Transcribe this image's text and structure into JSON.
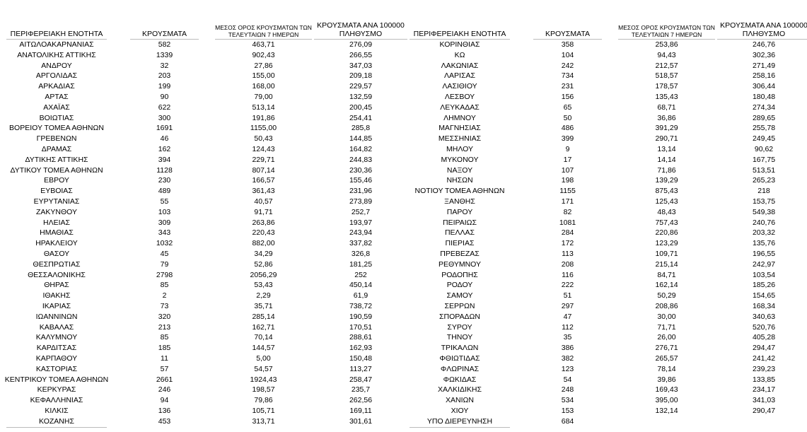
{
  "tables": [
    {
      "header": [
        "ΠΕΡΙΦΕΡΕΙΑΚΗ ΕΝΟΤΗΤΑ",
        "ΚΡΟΥΣΜΑΤΑ",
        "ΜΕΣΟΣ ΟΡΟΣ ΚΡΟΥΣΜΑΤΩΝ ΤΩΝ ΤΕΛΕΥΤΑΙΩΝ 7 ΗΜΕΡΩΝ",
        "ΚΡΟΥΣΜΑΤΑ ΑΝΑ 100000 ΠΛΗΘΥΣΜΟ"
      ],
      "rows": [
        [
          "ΑΙΤΩΛΟΑΚΑΡΝΑΝΙΑΣ",
          "582",
          "463,71",
          "276,09"
        ],
        [
          "ΑΝΑΤΟΛΙΚΗΣ ΑΤΤΙΚΗΣ",
          "1339",
          "902,43",
          "266,55"
        ],
        [
          "ΑΝΔΡΟΥ",
          "32",
          "27,86",
          "347,03"
        ],
        [
          "ΑΡΓΟΛΙΔΑΣ",
          "203",
          "155,00",
          "209,18"
        ],
        [
          "ΑΡΚΑΔΙΑΣ",
          "199",
          "168,00",
          "229,57"
        ],
        [
          "ΑΡΤΑΣ",
          "90",
          "79,00",
          "132,59"
        ],
        [
          "ΑΧΑΪΑΣ",
          "622",
          "513,14",
          "200,45"
        ],
        [
          "ΒΟΙΩΤΙΑΣ",
          "300",
          "191,86",
          "254,41"
        ],
        [
          "ΒΟΡΕΙΟΥ ΤΟΜΕΑ ΑΘΗΝΩΝ",
          "1691",
          "1155,00",
          "285,8"
        ],
        [
          "ΓΡΕΒΕΝΩΝ",
          "46",
          "50,43",
          "144,85"
        ],
        [
          "ΔΡΑΜΑΣ",
          "162",
          "124,43",
          "164,82"
        ],
        [
          "ΔΥΤΙΚΗΣ ΑΤΤΙΚΗΣ",
          "394",
          "229,71",
          "244,83"
        ],
        [
          "ΔΥΤΙΚΟΥ ΤΟΜΕΑ ΑΘΗΝΩΝ",
          "1128",
          "807,14",
          "230,36"
        ],
        [
          "ΕΒΡΟΥ",
          "230",
          "166,57",
          "155,46"
        ],
        [
          "ΕΥΒΟΙΑΣ",
          "489",
          "361,43",
          "231,96"
        ],
        [
          "ΕΥΡΥΤΑΝΙΑΣ",
          "55",
          "40,57",
          "273,89"
        ],
        [
          "ΖΑΚΥΝΘΟΥ",
          "103",
          "91,71",
          "252,7"
        ],
        [
          "ΗΛΕΙΑΣ",
          "309",
          "263,86",
          "193,97"
        ],
        [
          "ΗΜΑΘΙΑΣ",
          "343",
          "220,43",
          "243,94"
        ],
        [
          "ΗΡΑΚΛΕΙΟΥ",
          "1032",
          "882,00",
          "337,82"
        ],
        [
          "ΘΑΣΟΥ",
          "45",
          "34,29",
          "326,8"
        ],
        [
          "ΘΕΣΠΡΩΤΙΑΣ",
          "79",
          "52,86",
          "181,25"
        ],
        [
          "ΘΕΣΣΑΛΟΝΙΚΗΣ",
          "2798",
          "2056,29",
          "252"
        ],
        [
          "ΘΗΡΑΣ",
          "85",
          "53,43",
          "450,14"
        ],
        [
          "ΙΘΑΚΗΣ",
          "2",
          "2,29",
          "61,9"
        ],
        [
          "ΙΚΑΡΙΑΣ",
          "73",
          "35,71",
          "738,72"
        ],
        [
          "ΙΩΑΝΝΙΝΩΝ",
          "320",
          "285,14",
          "190,59"
        ],
        [
          "ΚΑΒΑΛΑΣ",
          "213",
          "162,71",
          "170,51"
        ],
        [
          "ΚΑΛΥΜΝΟΥ",
          "85",
          "70,14",
          "288,61"
        ],
        [
          "ΚΑΡΔΙΤΣΑΣ",
          "185",
          "144,57",
          "162,93"
        ],
        [
          "ΚΑΡΠΑΘΟΥ",
          "11",
          "5,00",
          "150,48"
        ],
        [
          "ΚΑΣΤΟΡΙΑΣ",
          "57",
          "54,57",
          "113,27"
        ],
        [
          "ΚΕΝΤΡΙΚΟΥ ΤΟΜΕΑ ΑΘΗΝΩΝ",
          "2661",
          "1924,43",
          "258,47"
        ],
        [
          "ΚΕΡΚΥΡΑΣ",
          "246",
          "198,57",
          "235,7"
        ],
        [
          "ΚΕΦΑΛΛΗΝΙΑΣ",
          "94",
          "79,86",
          "262,56"
        ],
        [
          "ΚΙΛΚΙΣ",
          "136",
          "105,71",
          "169,11"
        ],
        [
          "ΚΟΖΑΝΗΣ",
          "453",
          "313,71",
          "301,61"
        ]
      ]
    },
    {
      "header": [
        "ΠΕΡΙΦΕΡΕΙΑΚΗ ΕΝΟΤΗΤΑ",
        "ΚΡΟΥΣΜΑΤΑ",
        "ΜΕΣΟΣ ΟΡΟΣ ΚΡΟΥΣΜΑΤΩΝ ΤΩΝ ΤΕΛΕΥΤΑΙΩΝ 7 ΗΜΕΡΩΝ",
        "ΚΡΟΥΣΜΑΤΑ ΑΝΑ 100000 ΠΛΗΘΥΣΜΟ"
      ],
      "rows": [
        [
          "ΚΟΡΙΝΘΙΑΣ",
          "358",
          "253,86",
          "246,76"
        ],
        [
          "ΚΩ",
          "104",
          "94,43",
          "302,36"
        ],
        [
          "ΛΑΚΩΝΙΑΣ",
          "242",
          "212,57",
          "271,49"
        ],
        [
          "ΛΑΡΙΣΑΣ",
          "734",
          "518,57",
          "258,16"
        ],
        [
          "ΛΑΣΙΘΙΟΥ",
          "231",
          "178,57",
          "306,44"
        ],
        [
          "ΛΕΣΒΟΥ",
          "156",
          "135,43",
          "180,48"
        ],
        [
          "ΛΕΥΚΑΔΑΣ",
          "65",
          "68,71",
          "274,34"
        ],
        [
          "ΛΗΜΝΟΥ",
          "50",
          "36,86",
          "289,65"
        ],
        [
          "ΜΑΓΝΗΣΙΑΣ",
          "486",
          "391,29",
          "255,78"
        ],
        [
          "ΜΕΣΣΗΝΙΑΣ",
          "399",
          "290,71",
          "249,45"
        ],
        [
          "ΜΗΛΟΥ",
          "9",
          "13,14",
          "90,62"
        ],
        [
          "ΜΥΚΟΝΟΥ",
          "17",
          "14,14",
          "167,75"
        ],
        [
          "ΝΑΞΟΥ",
          "107",
          "71,86",
          "513,51"
        ],
        [
          "ΝΗΣΩΝ",
          "198",
          "139,29",
          "265,23"
        ],
        [
          "ΝΟΤΙΟΥ ΤΟΜΕΑ ΑΘΗΝΩΝ",
          "1155",
          "875,43",
          "218"
        ],
        [
          "ΞΑΝΘΗΣ",
          "171",
          "125,43",
          "153,75"
        ],
        [
          "ΠΑΡΟΥ",
          "82",
          "48,43",
          "549,38"
        ],
        [
          "ΠΕΙΡΑΙΩΣ",
          "1081",
          "757,43",
          "240,76"
        ],
        [
          "ΠΕΛΛΑΣ",
          "284",
          "220,86",
          "203,32"
        ],
        [
          "ΠΙΕΡΙΑΣ",
          "172",
          "123,29",
          "135,76"
        ],
        [
          "ΠΡΕΒΕΖΑΣ",
          "113",
          "109,71",
          "196,55"
        ],
        [
          "ΡΕΘΥΜΝΟΥ",
          "208",
          "215,14",
          "242,97"
        ],
        [
          "ΡΟΔΟΠΗΣ",
          "116",
          "84,71",
          "103,54"
        ],
        [
          "ΡΟΔΟΥ",
          "222",
          "162,14",
          "185,26"
        ],
        [
          "ΣΑΜΟΥ",
          "51",
          "50,29",
          "154,65"
        ],
        [
          "ΣΕΡΡΩΝ",
          "297",
          "208,86",
          "168,34"
        ],
        [
          "ΣΠΟΡΑΔΩΝ",
          "47",
          "30,00",
          "340,63"
        ],
        [
          "ΣΥΡΟΥ",
          "112",
          "71,71",
          "520,76"
        ],
        [
          "ΤΗΝΟΥ",
          "35",
          "26,00",
          "405,28"
        ],
        [
          "ΤΡΙΚΑΛΩΝ",
          "386",
          "276,71",
          "294,47"
        ],
        [
          "ΦΘΙΩΤΙΔΑΣ",
          "382",
          "265,57",
          "241,42"
        ],
        [
          "ΦΛΩΡΙΝΑΣ",
          "123",
          "78,14",
          "239,23"
        ],
        [
          "ΦΩΚΙΔΑΣ",
          "54",
          "39,86",
          "133,85"
        ],
        [
          "ΧΑΛΚΙΔΙΚΗΣ",
          "248",
          "169,43",
          "234,17"
        ],
        [
          "ΧΑΝΙΩΝ",
          "534",
          "395,00",
          "341,03"
        ],
        [
          "ΧΙΟΥ",
          "153",
          "132,14",
          "290,47"
        ],
        [
          "ΥΠΟ ΔΙΕΡΕΥΝΗΣΗ",
          "684"
        ]
      ]
    }
  ]
}
